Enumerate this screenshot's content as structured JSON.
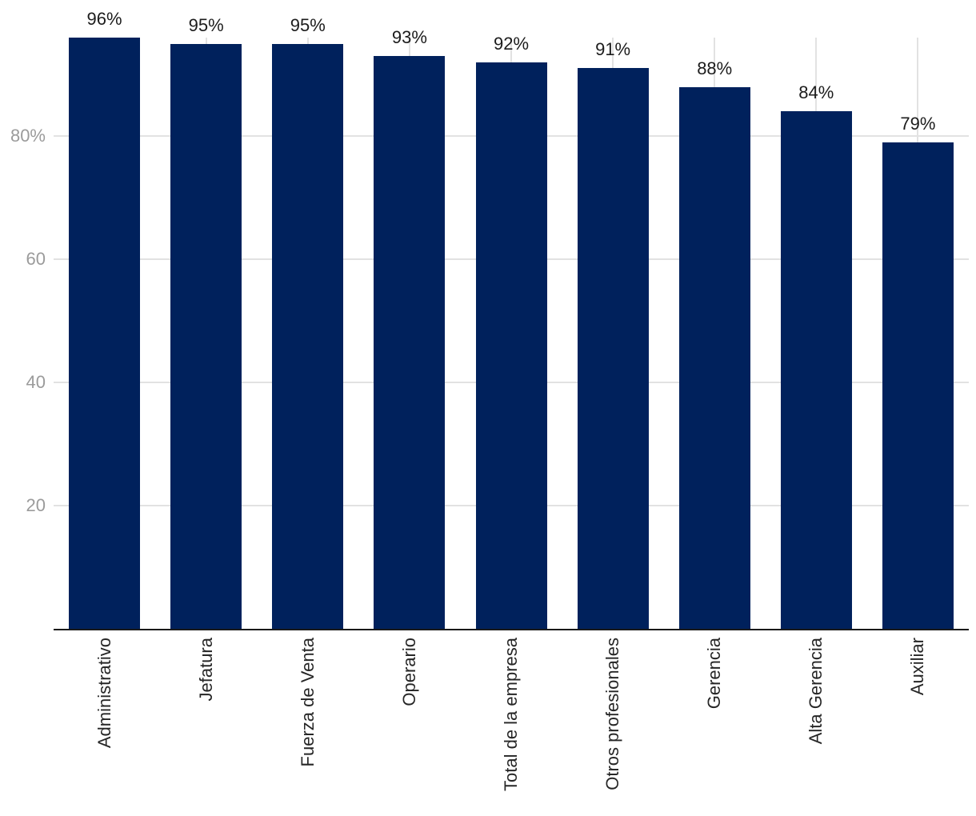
{
  "chart_title": "",
  "colors": {
    "bar": "#00215c",
    "grid": "#e2e2e2",
    "axis_line": "#1a1a1a",
    "y_tick_label": "#9b9b9b",
    "data_label": "#1c1c1c",
    "category_label": "#262626",
    "background": "#ffffff"
  },
  "chart_data": {
    "type": "bar",
    "title": "",
    "xlabel": "",
    "ylabel": "",
    "categories": [
      "Administrativo",
      "Jefatura",
      "Fuerza de Venta",
      "Operario",
      "Total de la empresa",
      "Otros profesionales",
      "Gerencia",
      "Alta Gerencia",
      "Auxiliar"
    ],
    "values": [
      96,
      95,
      95,
      93,
      92,
      91,
      88,
      84,
      79
    ],
    "data_labels": [
      "96%",
      "95%",
      "95%",
      "93%",
      "92%",
      "91%",
      "88%",
      "84%",
      "79%"
    ],
    "value_suffix": "%",
    "ylim": [
      0,
      96
    ],
    "yticks": [
      {
        "value": 20,
        "label": "20"
      },
      {
        "value": 40,
        "label": "40"
      },
      {
        "value": 60,
        "label": "60"
      },
      {
        "value": 80,
        "label": "80%"
      }
    ],
    "grid": "horizontal gridlines at yticks + vertical gridlines at each category center",
    "legend": "none",
    "bar_orientation": "vertical",
    "category_label_rotation_deg": -90
  }
}
